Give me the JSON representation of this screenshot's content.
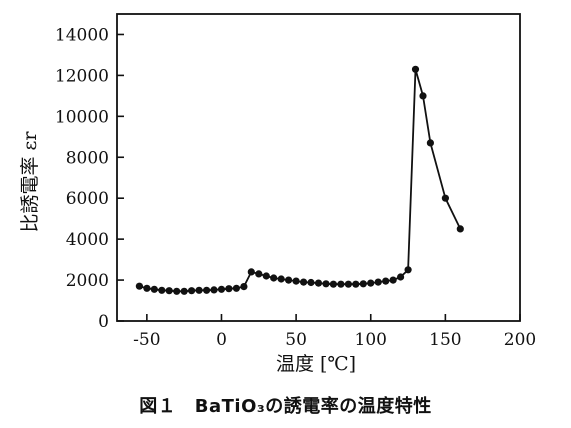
{
  "figure": {
    "caption": "図１　BaTiO₃の誘電率の温度特性"
  },
  "chart_data": {
    "type": "line",
    "title": "",
    "xlabel": "温度 [℃]",
    "ylabel": "比誘電率 εr",
    "xlim": [
      -70,
      200
    ],
    "ylim": [
      0,
      15000
    ],
    "xticks": [
      -50,
      0,
      50,
      100,
      150,
      200
    ],
    "yticks": [
      0,
      2000,
      4000,
      6000,
      8000,
      10000,
      12000,
      14000
    ],
    "xtick_labels": [
      "-50",
      "0",
      "50",
      "100",
      "150",
      "200"
    ],
    "ytick_labels": [
      "0",
      "2000",
      "4000",
      "6000",
      "8000",
      "10000",
      "12000",
      "14000"
    ],
    "grid": false,
    "legend": false,
    "line_color": "#111111",
    "marker": "filled-circle",
    "series": [
      {
        "x": [
          -55,
          -50,
          -45,
          -40,
          -35,
          -30,
          -25,
          -20,
          -15,
          -10,
          -5,
          0,
          5,
          10,
          15,
          20,
          25,
          30,
          35,
          40,
          45,
          50,
          55,
          60,
          65,
          70,
          75,
          80,
          85,
          90,
          95,
          100,
          105,
          110,
          115,
          120,
          125,
          130,
          135,
          140,
          150,
          160
        ],
        "y": [
          1700,
          1600,
          1550,
          1500,
          1480,
          1450,
          1450,
          1480,
          1500,
          1500,
          1520,
          1550,
          1580,
          1600,
          1680,
          2400,
          2300,
          2200,
          2100,
          2050,
          2000,
          1950,
          1900,
          1880,
          1850,
          1820,
          1800,
          1800,
          1800,
          1800,
          1820,
          1850,
          1900,
          1950,
          2000,
          2150,
          2500,
          12300,
          11000,
          8700,
          6000,
          4500
        ]
      }
    ]
  }
}
